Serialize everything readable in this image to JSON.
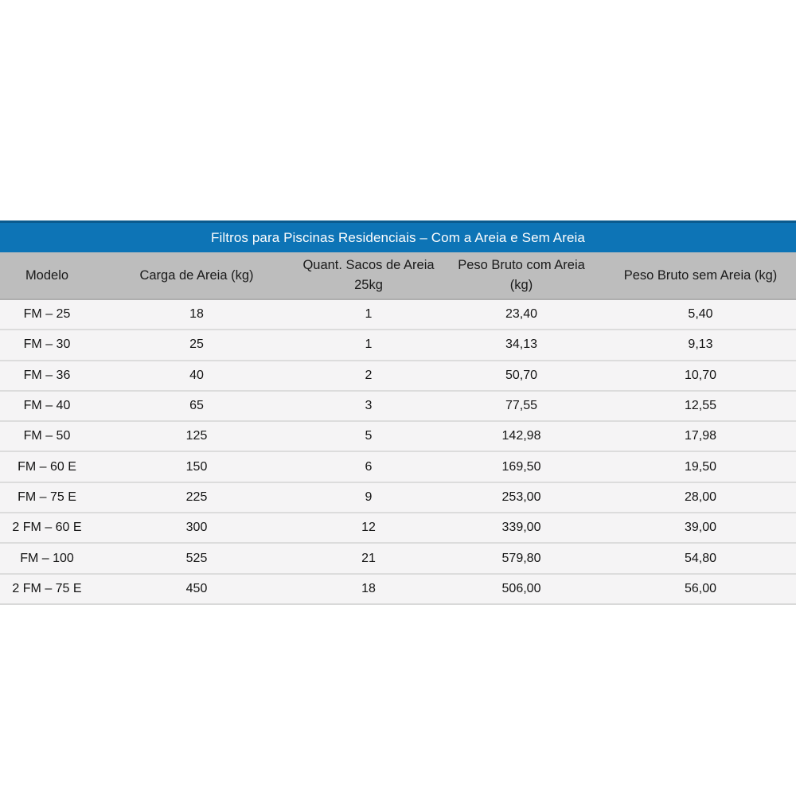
{
  "colors": {
    "title_bar_bg": "#0d74b6",
    "title_bar_top_border": "#0a5a8e",
    "title_text": "#fdfdfd",
    "header_band_bg": "#bdbdbd",
    "header_band_border": "#aeaeae",
    "row_bg": "#f5f4f5",
    "row_divider": "#dcdcdc",
    "body_text": "#141414",
    "page_bg": "#ffffff"
  },
  "table": {
    "title": "Filtros para Piscinas Residenciais – Com a Areia e Sem Areia",
    "headers": [
      "Modelo",
      "Carga de Areia (kg)",
      "Quant. Sacos de Areia\n25kg",
      "Peso Bruto com Areia\n(kg)",
      "Peso Bruto sem Areia (kg)"
    ],
    "rows": [
      [
        "FM – 25",
        "18",
        "1",
        "23,40",
        "5,40"
      ],
      [
        "FM – 30",
        "25",
        "1",
        "34,13",
        "9,13"
      ],
      [
        "FM – 36",
        "40",
        "2",
        "50,70",
        "10,70"
      ],
      [
        "FM – 40",
        "65",
        "3",
        "77,55",
        "12,55"
      ],
      [
        "FM – 50",
        "125",
        "5",
        "142,98",
        "17,98"
      ],
      [
        "FM – 60 E",
        "150",
        "6",
        "169,50",
        "19,50"
      ],
      [
        "FM – 75 E",
        "225",
        "9",
        "253,00",
        "28,00"
      ],
      [
        "2 FM – 60 E",
        "300",
        "12",
        "339,00",
        "39,00"
      ],
      [
        "FM – 100",
        "525",
        "21",
        "579,80",
        "54,80"
      ],
      [
        "2 FM – 75 E",
        "450",
        "18",
        "506,00",
        "56,00"
      ]
    ]
  },
  "chart_data": {
    "type": "table",
    "title": "Filtros para Piscinas Residenciais – Com a Areia e Sem Areia",
    "columns": [
      "Modelo",
      "Carga de Areia (kg)",
      "Quant. Sacos de Areia 25kg",
      "Peso Bruto com Areia (kg)",
      "Peso Bruto sem Areia (kg)"
    ],
    "rows": [
      {
        "modelo": "FM – 25",
        "carga_areia_kg": 18,
        "sacos_25kg": 1,
        "peso_bruto_com_areia_kg": 23.4,
        "peso_bruto_sem_areia_kg": 5.4
      },
      {
        "modelo": "FM – 30",
        "carga_areia_kg": 25,
        "sacos_25kg": 1,
        "peso_bruto_com_areia_kg": 34.13,
        "peso_bruto_sem_areia_kg": 9.13
      },
      {
        "modelo": "FM – 36",
        "carga_areia_kg": 40,
        "sacos_25kg": 2,
        "peso_bruto_com_areia_kg": 50.7,
        "peso_bruto_sem_areia_kg": 10.7
      },
      {
        "modelo": "FM – 40",
        "carga_areia_kg": 65,
        "sacos_25kg": 3,
        "peso_bruto_com_areia_kg": 77.55,
        "peso_bruto_sem_areia_kg": 12.55
      },
      {
        "modelo": "FM – 50",
        "carga_areia_kg": 125,
        "sacos_25kg": 5,
        "peso_bruto_com_areia_kg": 142.98,
        "peso_bruto_sem_areia_kg": 17.98
      },
      {
        "modelo": "FM – 60 E",
        "carga_areia_kg": 150,
        "sacos_25kg": 6,
        "peso_bruto_com_areia_kg": 169.5,
        "peso_bruto_sem_areia_kg": 19.5
      },
      {
        "modelo": "FM – 75 E",
        "carga_areia_kg": 225,
        "sacos_25kg": 9,
        "peso_bruto_com_areia_kg": 253.0,
        "peso_bruto_sem_areia_kg": 28.0
      },
      {
        "modelo": "2 FM – 60 E",
        "carga_areia_kg": 300,
        "sacos_25kg": 12,
        "peso_bruto_com_areia_kg": 339.0,
        "peso_bruto_sem_areia_kg": 39.0
      },
      {
        "modelo": "FM – 100",
        "carga_areia_kg": 525,
        "sacos_25kg": 21,
        "peso_bruto_com_areia_kg": 579.8,
        "peso_bruto_sem_areia_kg": 54.8
      },
      {
        "modelo": "2 FM – 75 E",
        "carga_areia_kg": 450,
        "sacos_25kg": 18,
        "peso_bruto_com_areia_kg": 506.0,
        "peso_bruto_sem_areia_kg": 56.0
      }
    ]
  }
}
